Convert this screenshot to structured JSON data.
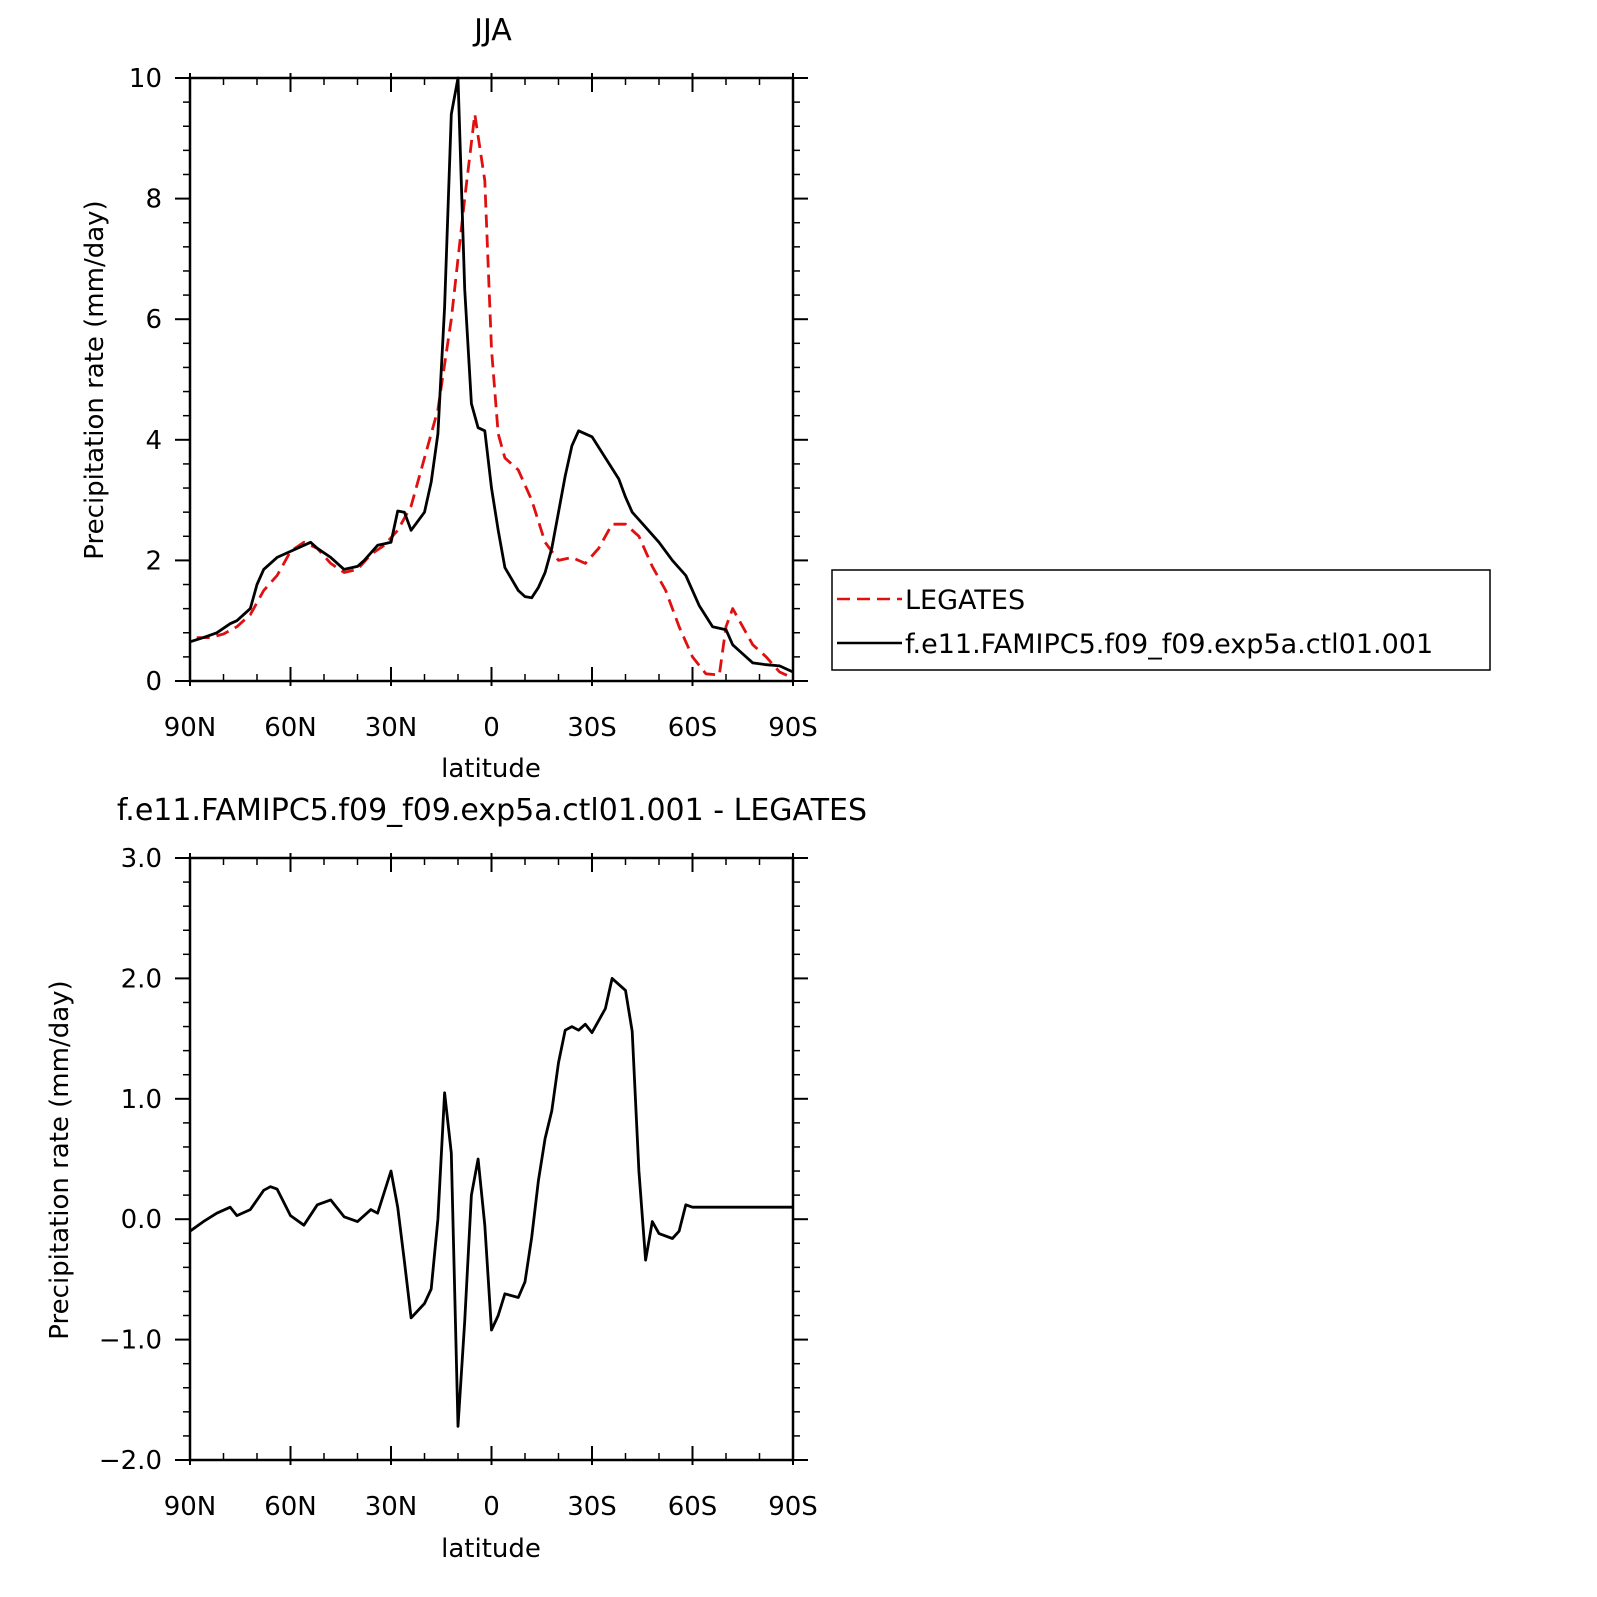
{
  "chart_data": [
    {
      "type": "line",
      "title": "JJA",
      "xlabel": "latitude",
      "ylabel": "Precipitation rate (mm/day)",
      "xlim": [
        90,
        -90
      ],
      "ylim": [
        0,
        10
      ],
      "x_tick_values": [
        90,
        60,
        30,
        0,
        -30,
        -60,
        -90
      ],
      "x_tick_labels": [
        "90N",
        "60N",
        "30N",
        "0",
        "30S",
        "60S",
        "90S"
      ],
      "y_tick_values": [
        0,
        2,
        4,
        6,
        8,
        10
      ],
      "y_tick_labels": [
        "0",
        "2",
        "4",
        "6",
        "8",
        "10"
      ],
      "legend_position": "right",
      "series": [
        {
          "name": "LEGATES",
          "color": "#e01010",
          "dash": "dashed",
          "x": [
            88,
            84,
            80,
            76,
            72,
            68,
            64,
            60,
            56,
            52,
            48,
            44,
            40,
            36,
            32,
            28,
            24,
            20,
            16,
            12,
            8,
            5,
            2,
            0,
            -2,
            -4,
            -8,
            -12,
            -16,
            -20,
            -24,
            -28,
            -32,
            -36,
            -40,
            -44,
            -48,
            -52,
            -56,
            -60,
            -64,
            -68,
            -70,
            -72,
            -74,
            -78,
            -82,
            -86,
            -90
          ],
          "y": [
            0.72,
            0.72,
            0.78,
            0.9,
            1.1,
            1.5,
            1.75,
            2.15,
            2.3,
            2.2,
            1.95,
            1.8,
            1.85,
            2.1,
            2.25,
            2.5,
            2.9,
            3.7,
            4.5,
            6.0,
            8.0,
            9.4,
            8.3,
            5.5,
            4.1,
            3.7,
            3.5,
            3.0,
            2.3,
            2.0,
            2.05,
            1.95,
            2.2,
            2.6,
            2.6,
            2.4,
            1.9,
            1.5,
            0.9,
            0.4,
            0.12,
            0.1,
            0.9,
            1.2,
            1.0,
            0.6,
            0.4,
            0.15,
            0.05
          ]
        },
        {
          "name": "f.e11.FAMIPC5.f09_f09.exp5a.ctl01.001",
          "color": "#000000",
          "dash": "solid",
          "x": [
            90,
            86,
            82,
            78,
            76,
            72,
            70,
            68,
            64,
            60,
            58,
            54,
            52,
            48,
            44,
            40,
            38,
            34,
            30,
            28,
            26,
            24,
            20,
            18,
            16,
            14,
            12,
            10,
            8,
            6,
            4,
            2,
            0,
            -2,
            -4,
            -8,
            -10,
            -12,
            -14,
            -16,
            -18,
            -20,
            -22,
            -24,
            -26,
            -30,
            -34,
            -38,
            -40,
            -42,
            -46,
            -50,
            -54,
            -58,
            -62,
            -66,
            -70,
            -72,
            -74,
            -78,
            -82,
            -86,
            -90
          ],
          "y": [
            0.65,
            0.72,
            0.8,
            0.95,
            1.0,
            1.2,
            1.6,
            1.85,
            2.05,
            2.15,
            2.2,
            2.3,
            2.2,
            2.05,
            1.85,
            1.9,
            2.0,
            2.25,
            2.3,
            2.82,
            2.8,
            2.5,
            2.8,
            3.3,
            4.1,
            6.2,
            9.4,
            10.0,
            6.5,
            4.6,
            4.2,
            4.15,
            3.2,
            2.5,
            1.88,
            1.5,
            1.4,
            1.38,
            1.55,
            1.8,
            2.2,
            2.8,
            3.4,
            3.9,
            4.15,
            4.05,
            3.7,
            3.35,
            3.05,
            2.8,
            2.55,
            2.3,
            2.0,
            1.75,
            1.25,
            0.9,
            0.85,
            0.6,
            0.5,
            0.3,
            0.27,
            0.25,
            0.15
          ]
        }
      ]
    },
    {
      "type": "line",
      "title": "f.e11.FAMIPC5.f09_f09.exp5a.ctl01.001 - LEGATES",
      "xlabel": "latitude",
      "ylabel": "Precipitation rate (mm/day)",
      "xlim": [
        90,
        -90
      ],
      "ylim": [
        -2.0,
        3.0
      ],
      "x_tick_values": [
        90,
        60,
        30,
        0,
        -30,
        -60,
        -90
      ],
      "x_tick_labels": [
        "90N",
        "60N",
        "30N",
        "0",
        "30S",
        "60S",
        "90S"
      ],
      "y_tick_values": [
        -2.0,
        -1.0,
        0.0,
        1.0,
        2.0,
        3.0
      ],
      "y_tick_labels": [
        "-2.0",
        "-1.0",
        "0.0",
        "1.0",
        "2.0",
        "3.0"
      ],
      "series": [
        {
          "color": "#000000",
          "dash": "solid",
          "x": [
            90,
            86,
            82,
            78,
            76,
            72,
            68,
            66,
            64,
            60,
            56,
            52,
            48,
            44,
            40,
            36,
            34,
            30,
            28,
            26,
            24,
            20,
            18,
            16,
            14,
            12,
            10,
            8,
            6,
            4,
            2,
            0,
            -2,
            -4,
            -8,
            -10,
            -12,
            -14,
            -16,
            -18,
            -20,
            -22,
            -24,
            -26,
            -28,
            -30,
            -34,
            -36,
            -38,
            -40,
            -42,
            -44,
            -46,
            -48,
            -50,
            -54,
            -56,
            -58,
            -60,
            -62,
            -64,
            -66,
            -68,
            -70,
            -72,
            -74,
            -76,
            -78,
            -80,
            -82,
            -84,
            -86,
            -88,
            -90
          ],
          "y": [
            -0.1,
            -0.02,
            0.05,
            0.1,
            0.03,
            0.08,
            0.24,
            0.27,
            0.25,
            0.03,
            -0.05,
            0.12,
            0.16,
            0.02,
            -0.02,
            0.08,
            0.05,
            0.4,
            0.1,
            -0.35,
            -0.82,
            -0.7,
            -0.58,
            0.0,
            1.05,
            0.55,
            -1.72,
            -0.85,
            0.2,
            0.5,
            -0.05,
            -0.92,
            -0.8,
            -0.62,
            -0.65,
            -0.52,
            -0.15,
            0.32,
            0.67,
            0.9,
            1.3,
            1.57,
            1.6,
            1.57,
            1.62,
            1.55,
            1.75,
            2.0,
            1.95,
            1.9,
            1.56,
            0.4,
            -0.34,
            -0.02,
            -0.12,
            -0.16,
            -0.1,
            0.12,
            0.1,
            0.1,
            0.1,
            0.1,
            0.1,
            0.1,
            0.1,
            0.1,
            0.1,
            0.1,
            0.1,
            0.1,
            0.1,
            0.1,
            0.1,
            0.1
          ]
        }
      ]
    }
  ]
}
